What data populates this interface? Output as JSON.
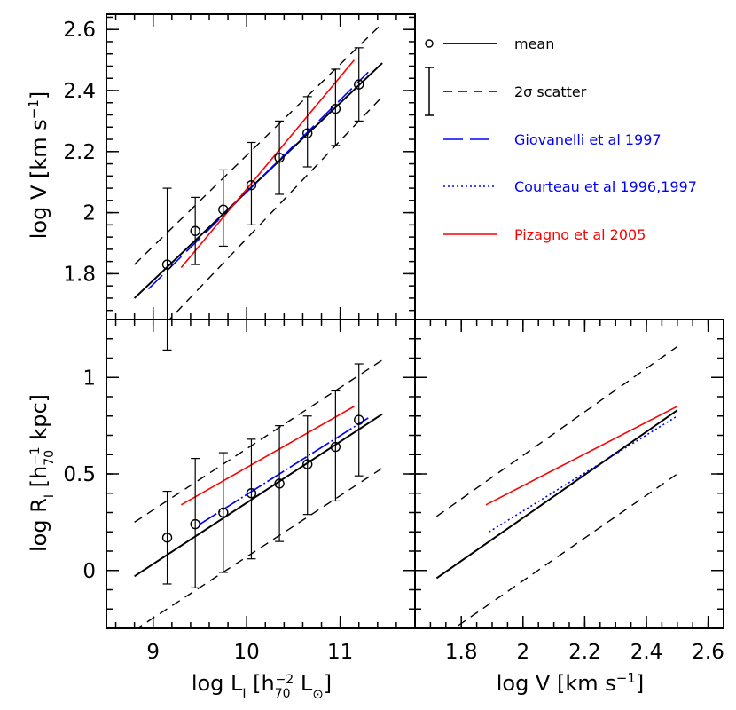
{
  "chart_data": [
    {
      "panel": "top-left",
      "type": "line",
      "xlim": [
        8.5,
        11.8
      ],
      "ylim": [
        1.65,
        2.65
      ],
      "x_ticks": [
        9,
        10,
        11
      ],
      "y_ticks": [
        1.8,
        2,
        2.2,
        2.4,
        2.6
      ],
      "y_ticklabels": [
        "1.8",
        "2",
        "2.2",
        "2.4",
        "2.6"
      ],
      "ylabel": "log V [km s⁻¹]",
      "binned_x": [
        9.15,
        9.45,
        9.75,
        10.05,
        10.35,
        10.65,
        10.95,
        11.2
      ],
      "binned_mean": [
        1.83,
        1.94,
        2.01,
        2.09,
        2.18,
        2.26,
        2.34,
        2.42
      ],
      "binned_scatter_low": [
        1.55,
        1.83,
        1.89,
        1.96,
        2.06,
        2.15,
        2.22,
        2.3
      ],
      "binned_scatter_high": [
        2.08,
        2.05,
        2.14,
        2.23,
        2.3,
        2.38,
        2.47,
        2.54
      ],
      "mean_line": {
        "x": [
          8.8,
          11.45
        ],
        "y": [
          1.72,
          2.49
        ]
      },
      "scatter_upper": {
        "x": [
          8.8,
          11.45
        ],
        "y": [
          1.83,
          2.62
        ]
      },
      "scatter_lower": {
        "x": [
          8.8,
          11.45
        ],
        "y": [
          1.53,
          2.38
        ]
      },
      "giovanelli": {
        "x": [
          8.95,
          11.3
        ],
        "y": [
          1.75,
          2.46
        ]
      },
      "pizagno": {
        "x": [
          9.3,
          11.15
        ],
        "y": [
          1.82,
          2.5
        ]
      }
    },
    {
      "panel": "bottom-left",
      "type": "line",
      "xlim": [
        8.5,
        11.8
      ],
      "ylim": [
        -0.3,
        1.3
      ],
      "x_ticks": [
        9,
        10,
        11
      ],
      "x_ticklabels": [
        "9",
        "10",
        "11"
      ],
      "y_ticks": [
        0,
        0.5,
        1
      ],
      "y_ticklabels": [
        "0",
        "0.5",
        "1"
      ],
      "xlabel": "log Lᵢ [h₇₀⁻² L⊙]",
      "ylabel": "log Rᵢ [h₇₀⁻¹ kpc]",
      "binned_x": [
        9.15,
        9.45,
        9.75,
        10.05,
        10.35,
        10.65,
        10.95,
        11.2
      ],
      "binned_mean": [
        0.17,
        0.24,
        0.3,
        0.4,
        0.45,
        0.55,
        0.64,
        0.78
      ],
      "binned_scatter_low": [
        -0.07,
        -0.09,
        -0.01,
        0.06,
        0.15,
        0.29,
        0.36,
        0.49
      ],
      "binned_scatter_high": [
        0.41,
        0.58,
        0.61,
        0.68,
        0.75,
        0.8,
        0.93,
        1.07
      ],
      "mean_line": {
        "x": [
          8.8,
          11.45
        ],
        "y": [
          -0.03,
          0.81
        ]
      },
      "scatter_upper": {
        "x": [
          8.8,
          11.45
        ],
        "y": [
          0.25,
          1.09
        ]
      },
      "scatter_lower": {
        "x": [
          8.8,
          11.45
        ],
        "y": [
          -0.31,
          0.53
        ]
      },
      "giovanelli": {
        "x": [
          9.5,
          11.3
        ],
        "y": [
          0.24,
          0.79
        ]
      },
      "courteau": {
        "x": [
          9.5,
          11.3
        ],
        "y": [
          0.24,
          0.79
        ]
      },
      "pizagno": {
        "x": [
          9.3,
          11.15
        ],
        "y": [
          0.34,
          0.85
        ]
      }
    },
    {
      "panel": "bottom-right",
      "type": "line",
      "xlim": [
        1.65,
        2.65
      ],
      "ylim": [
        -0.3,
        1.3
      ],
      "x_ticks": [
        1.8,
        2,
        2.2,
        2.4,
        2.6
      ],
      "x_ticklabels": [
        "1.8",
        "2",
        "2.2",
        "2.4",
        "2.6"
      ],
      "y_ticks": [
        0,
        0.5,
        1
      ],
      "xlabel": "log V [km s⁻¹]",
      "mean_line": {
        "x": [
          1.72,
          2.5
        ],
        "y": [
          -0.04,
          0.83
        ]
      },
      "scatter_upper": {
        "x": [
          1.72,
          2.5
        ],
        "y": [
          0.28,
          1.16
        ]
      },
      "scatter_lower": {
        "x": [
          1.75,
          2.5
        ],
        "y": [
          -0.33,
          0.5
        ]
      },
      "courteau": {
        "x": [
          1.89,
          2.5
        ],
        "y": [
          0.2,
          0.8
        ]
      },
      "pizagno": {
        "x": [
          1.88,
          2.5
        ],
        "y": [
          0.34,
          0.85
        ]
      }
    }
  ],
  "legend": {
    "mean_label": "mean",
    "scatter_label": "2σ scatter",
    "giovanelli_label": "Giovanelli et al 1997",
    "courteau_label": "Courteau et al 1996,1997",
    "pizagno_label": "Pizagno et al 2005"
  },
  "colors": {
    "data": "#000000",
    "giovanelli": "#0000ff",
    "courteau": "#0000ff",
    "pizagno": "#ff0000"
  }
}
